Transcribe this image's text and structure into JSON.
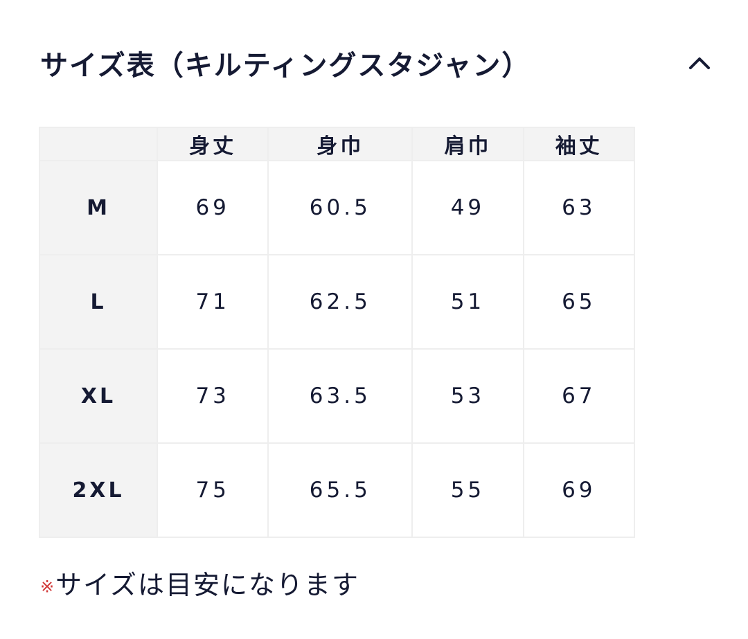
{
  "title": "サイズ表（キルティングスタジャン）",
  "toggle_icon": "chevron-up-icon",
  "table": {
    "columns": [
      "身丈",
      "身巾",
      "肩巾",
      "袖丈"
    ],
    "rows": [
      {
        "size": "M",
        "values": [
          "69",
          "60.5",
          "49",
          "63"
        ]
      },
      {
        "size": "L",
        "values": [
          "71",
          "62.5",
          "51",
          "65"
        ]
      },
      {
        "size": "XL",
        "values": [
          "73",
          "63.5",
          "53",
          "67"
        ]
      },
      {
        "size": "2XL",
        "values": [
          "75",
          "65.5",
          "55",
          "69"
        ]
      }
    ]
  },
  "note": {
    "mark": "※",
    "text": "サイズは目安になります",
    "mark_color": "#d23a3a"
  }
}
